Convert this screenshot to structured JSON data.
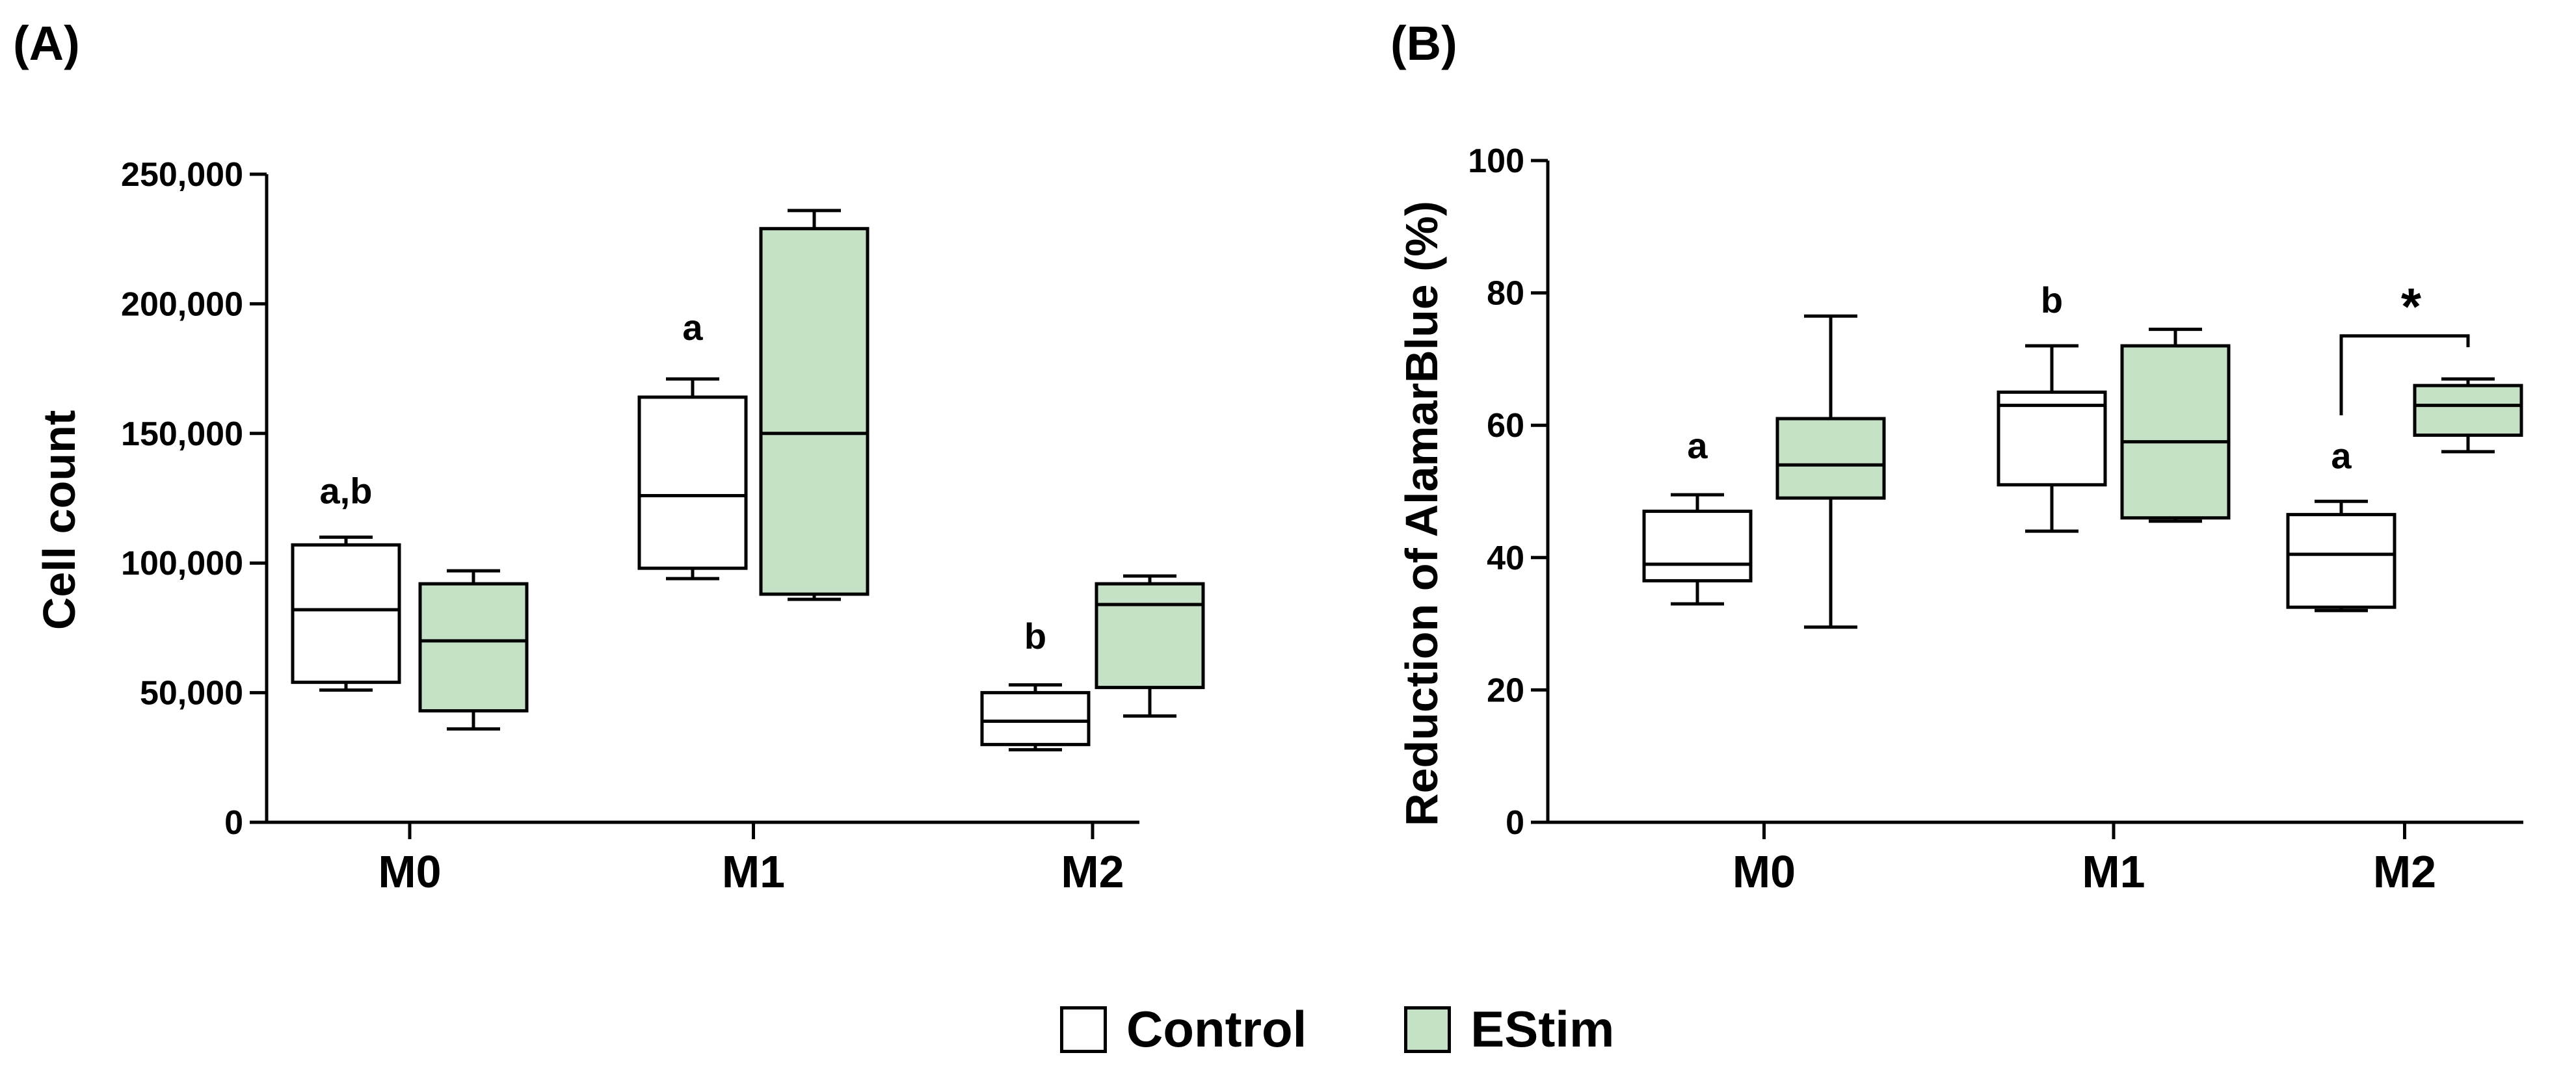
{
  "colors": {
    "control": "#ffffff",
    "estim": "#c6e2c6",
    "stroke": "#000000"
  },
  "legend": [
    {
      "label": "Control",
      "color": "#ffffff"
    },
    {
      "label": "EStim",
      "color": "#c6e2c6"
    }
  ],
  "chart_data": [
    {
      "type": "box",
      "panel_label": "(A)",
      "ylabel": "Cell count",
      "xlabel": "",
      "ylim": [
        0,
        250000
      ],
      "yticks": [
        0,
        50000,
        100000,
        150000,
        200000,
        250000
      ],
      "ytick_labels": [
        "0",
        "50,000",
        "100,000",
        "150,000",
        "200,000",
        "250,000"
      ],
      "categories": [
        "M0",
        "M1",
        "M2"
      ],
      "series": [
        {
          "name": "Control",
          "boxes": [
            {
              "min": 51000,
              "q1": 54000,
              "median": 82000,
              "q3": 107000,
              "max": 110000
            },
            {
              "min": 94000,
              "q1": 98000,
              "median": 126000,
              "q3": 164000,
              "max": 171000
            },
            {
              "min": 28000,
              "q1": 30000,
              "median": 39000,
              "q3": 50000,
              "max": 53000
            }
          ]
        },
        {
          "name": "EStim",
          "boxes": [
            {
              "min": 36000,
              "q1": 43000,
              "median": 70000,
              "q3": 92000,
              "max": 97000
            },
            {
              "min": 86000,
              "q1": 88000,
              "median": 150000,
              "q3": 229000,
              "max": 236000
            },
            {
              "min": 41000,
              "q1": 52000,
              "median": 84000,
              "q3": 92000,
              "max": 95000
            }
          ]
        }
      ],
      "annotations": [
        {
          "text": "a,b",
          "category": "M0",
          "series": "Control",
          "y": 123000
        },
        {
          "text": "a",
          "category": "M1",
          "series": "Control",
          "y": 186000
        },
        {
          "text": "b",
          "category": "M2",
          "series": "Control",
          "y": 67000
        }
      ]
    },
    {
      "type": "box",
      "panel_label": "(B)",
      "ylabel": "Reduction of AlamarBlue (%)",
      "xlabel": "",
      "ylim": [
        0,
        100
      ],
      "yticks": [
        0,
        20,
        40,
        60,
        80,
        100
      ],
      "ytick_labels": [
        "0",
        "20",
        "40",
        "60",
        "80",
        "100"
      ],
      "categories": [
        "M0",
        "M1",
        "M2"
      ],
      "series": [
        {
          "name": "Control",
          "boxes": [
            {
              "min": 33,
              "q1": 36.5,
              "median": 39,
              "q3": 47,
              "max": 49.5
            },
            {
              "min": 44,
              "q1": 51,
              "median": 63,
              "q3": 65,
              "max": 72
            },
            {
              "min": 32,
              "q1": 32.5,
              "median": 40.5,
              "q3": 46.5,
              "max": 48.5
            }
          ]
        },
        {
          "name": "EStim",
          "boxes": [
            {
              "min": 29.5,
              "q1": 49,
              "median": 54,
              "q3": 61,
              "max": 76.5
            },
            {
              "min": 45.5,
              "q1": 46,
              "median": 57.5,
              "q3": 72,
              "max": 74.5
            },
            {
              "min": 56,
              "q1": 58.5,
              "median": 63,
              "q3": 66,
              "max": 67
            }
          ]
        }
      ],
      "annotations": [
        {
          "text": "a",
          "category": "M0",
          "series": "Control",
          "y": 55
        },
        {
          "text": "b",
          "category": "M1",
          "series": "Control",
          "y": 77
        },
        {
          "text": "a",
          "category": "M2",
          "series": "Control",
          "y": 53.5
        }
      ],
      "significance": [
        {
          "text": "*",
          "category": "M2",
          "between": [
            "Control",
            "EStim"
          ],
          "y": 73.5
        }
      ]
    }
  ]
}
